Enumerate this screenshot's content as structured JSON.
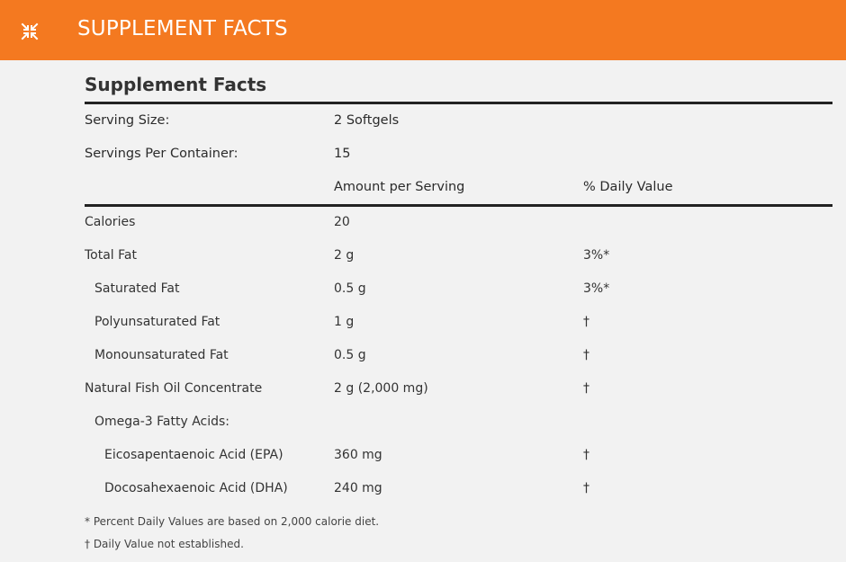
{
  "header": {
    "title": "SUPPLEMENT FACTS",
    "background": "#f47920",
    "collapse_icon": "collapse-arrows-icon"
  },
  "facts": {
    "title": "Supplement Facts",
    "serving_size_label": "Serving Size:",
    "serving_size_value": "2 Softgels",
    "servings_per_container_label": "Servings Per Container:",
    "servings_per_container_value": "15",
    "col_amount": "Amount per Serving",
    "col_daily_value": "% Daily Value",
    "rows": [
      {
        "name": "Calories",
        "amount": "20",
        "dv": ""
      },
      {
        "name": "Total Fat",
        "amount": "2 g",
        "dv": "3%*"
      },
      {
        "name": "Saturated Fat",
        "amount": "0.5 g",
        "dv": "3%*"
      },
      {
        "name": "Polyunsaturated Fat",
        "amount": "1 g",
        "dv": "†"
      },
      {
        "name": "Monounsaturated Fat",
        "amount": "0.5 g",
        "dv": "†"
      },
      {
        "name": "Natural Fish Oil Concentrate",
        "amount": "2 g (2,000 mg)",
        "dv": "†"
      },
      {
        "name": "Omega-3 Fatty Acids:",
        "amount": "",
        "dv": ""
      },
      {
        "name": "Eicosapentaenoic Acid (EPA)",
        "amount": "360 mg",
        "dv": "†"
      },
      {
        "name": "Docosahexaenoic Acid (DHA)",
        "amount": "240 mg",
        "dv": "†"
      }
    ],
    "footnotes": [
      "* Percent Daily Values are based on 2,000 calorie diet.",
      "† Daily Value not established."
    ]
  }
}
